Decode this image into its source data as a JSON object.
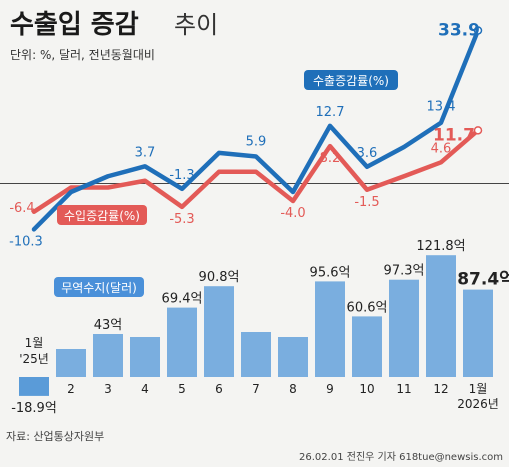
{
  "header": {
    "title_main": "수출입 증감",
    "title_suffix": "추이",
    "units": "단위: %, 달러, 전년동월대비"
  },
  "footer": {
    "source": "자료: 산업통상자원부",
    "credit": "26.02.01  전진우  기자  618tue@newsis.com"
  },
  "colors": {
    "export": "#1f6fb9",
    "import": "#e35a57",
    "bar": "#7aaedf",
    "bar_neg": "#5a9bd8",
    "tradelabel": "#4a90d9"
  },
  "chart_data": {
    "type": "bar+line",
    "categories": [
      "1월 '25년",
      "2",
      "3",
      "4",
      "5",
      "6",
      "7",
      "8",
      "9",
      "10",
      "11",
      "12",
      "1월 2026년"
    ],
    "month_labels": [
      [
        "1월",
        "'25년"
      ],
      [
        "2"
      ],
      [
        "3"
      ],
      [
        "4"
      ],
      [
        "5"
      ],
      [
        "6"
      ],
      [
        "7"
      ],
      [
        "8"
      ],
      [
        "9"
      ],
      [
        "10"
      ],
      [
        "11"
      ],
      [
        "12"
      ],
      [
        "1월",
        "2026년"
      ]
    ],
    "series": [
      {
        "name": "수출증감률(%)",
        "type": "line",
        "values": [
          -10.3,
          -2.0,
          1.5,
          3.7,
          -1.3,
          6.7,
          5.9,
          -2.0,
          12.7,
          3.6,
          8.0,
          13.4,
          33.9
        ],
        "labels": [
          "-10.3",
          "",
          "",
          "3.7",
          "-1.3",
          "",
          "5.9",
          "",
          "12.7",
          "3.6",
          "",
          "13.4",
          "33.9"
        ]
      },
      {
        "name": "수입증감률(%)",
        "type": "line",
        "values": [
          -6.4,
          -1.0,
          -1.0,
          0.5,
          -5.3,
          2.5,
          2.5,
          -4.0,
          8.2,
          -1.5,
          1.5,
          4.6,
          11.7
        ],
        "labels": [
          "-6.4",
          "",
          "",
          "",
          "-5.3",
          "",
          "",
          "-4.0",
          "8.2",
          "-1.5",
          "",
          "4.6",
          "11.7"
        ]
      },
      {
        "name": "무역수지(달러)",
        "type": "bar",
        "values": [
          -18.9,
          28,
          43,
          40,
          69.4,
          90.8,
          45,
          40,
          95.6,
          60.6,
          97.3,
          121.8,
          87.4
        ],
        "labels": [
          "-18.9억",
          "",
          "43억",
          "",
          "69.4억",
          "90.8억",
          "",
          "",
          "95.6억",
          "60.6억",
          "97.3억",
          "121.8억",
          "87.4억"
        ]
      }
    ],
    "ylabel": "",
    "xlabel": ""
  }
}
